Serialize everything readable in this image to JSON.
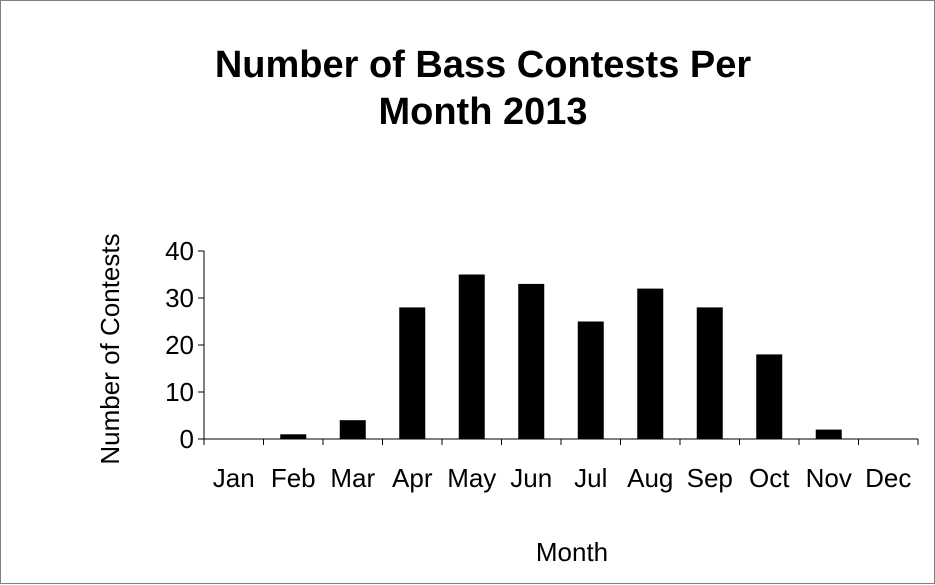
{
  "chart_data": {
    "type": "bar",
    "title_lines": [
      "Number of Bass Contests Per",
      "Month 2013"
    ],
    "xlabel": "Month",
    "ylabel": "Number of Contests",
    "categories": [
      "Jan",
      "Feb",
      "Mar",
      "Apr",
      "May",
      "Jun",
      "Jul",
      "Aug",
      "Sep",
      "Oct",
      "Nov",
      "Dec"
    ],
    "values": [
      0,
      1,
      4,
      28,
      35,
      33,
      25,
      32,
      28,
      18,
      2,
      0
    ],
    "ylim": [
      0,
      40
    ],
    "yticks": [
      "0",
      "10",
      "20",
      "30",
      "40"
    ],
    "grid": false,
    "legend": "none",
    "bar_color": "#000000"
  }
}
